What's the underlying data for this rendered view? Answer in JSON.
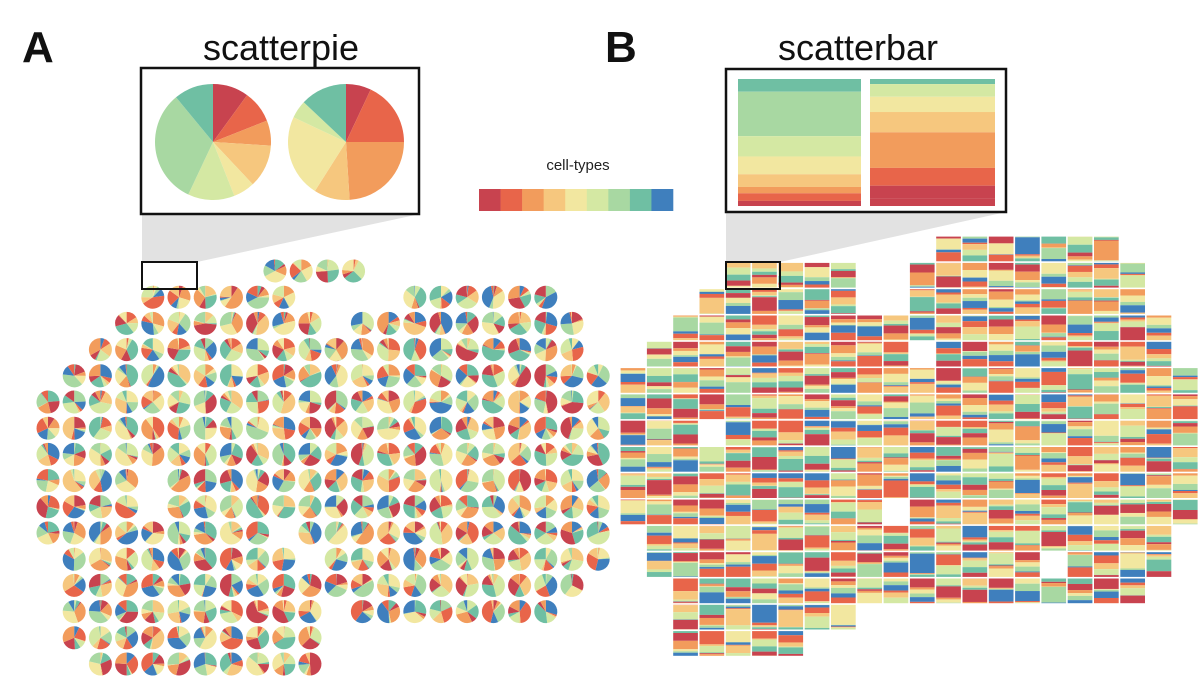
{
  "panels": {
    "a": {
      "letter": "A",
      "title": "scatterpie"
    },
    "b": {
      "letter": "B",
      "title": "scatterbar"
    }
  },
  "legend": {
    "title": "cell-types"
  },
  "colors": {
    "palette": [
      "#c8434f",
      "#e8654a",
      "#f29c5c",
      "#f6c77e",
      "#f2e7a0",
      "#d4e8a3",
      "#a8d8a2",
      "#6fbfa3",
      "#3f7fbd"
    ],
    "inset_border": "#111111",
    "zoom_shade": "#e2e2e2"
  },
  "chart_data": [
    {
      "type": "scatter",
      "chart": "scatterpie",
      "legend_categories": 9,
      "insets": [
        {
          "slices": [
            0.1,
            0.09,
            0.07,
            0.12,
            0.06,
            0.13,
            0.32,
            0.11
          ]
        },
        {
          "slices": [
            0.07,
            0.18,
            0.24,
            0.1,
            0.23,
            0.05,
            0.13
          ]
        }
      ],
      "spot_layout": "tissue section, ~19 columns x 16 rows of spots with gaps",
      "values_readable": false
    },
    {
      "type": "bar",
      "chart": "scatterbar",
      "legend_categories": 9,
      "insets": [
        {
          "segments": [
            0.04,
            0.06,
            0.05,
            0.1,
            0.14,
            0.16,
            0.35,
            0.1
          ]
        },
        {
          "segments": [
            0.06,
            0.1,
            0.14,
            0.28,
            0.16,
            0.12,
            0.1,
            0.04
          ]
        }
      ],
      "spot_layout": "tissue section, ~21 columns x 15 rows of stacked-bar tiles with gaps",
      "values_readable": false
    }
  ]
}
